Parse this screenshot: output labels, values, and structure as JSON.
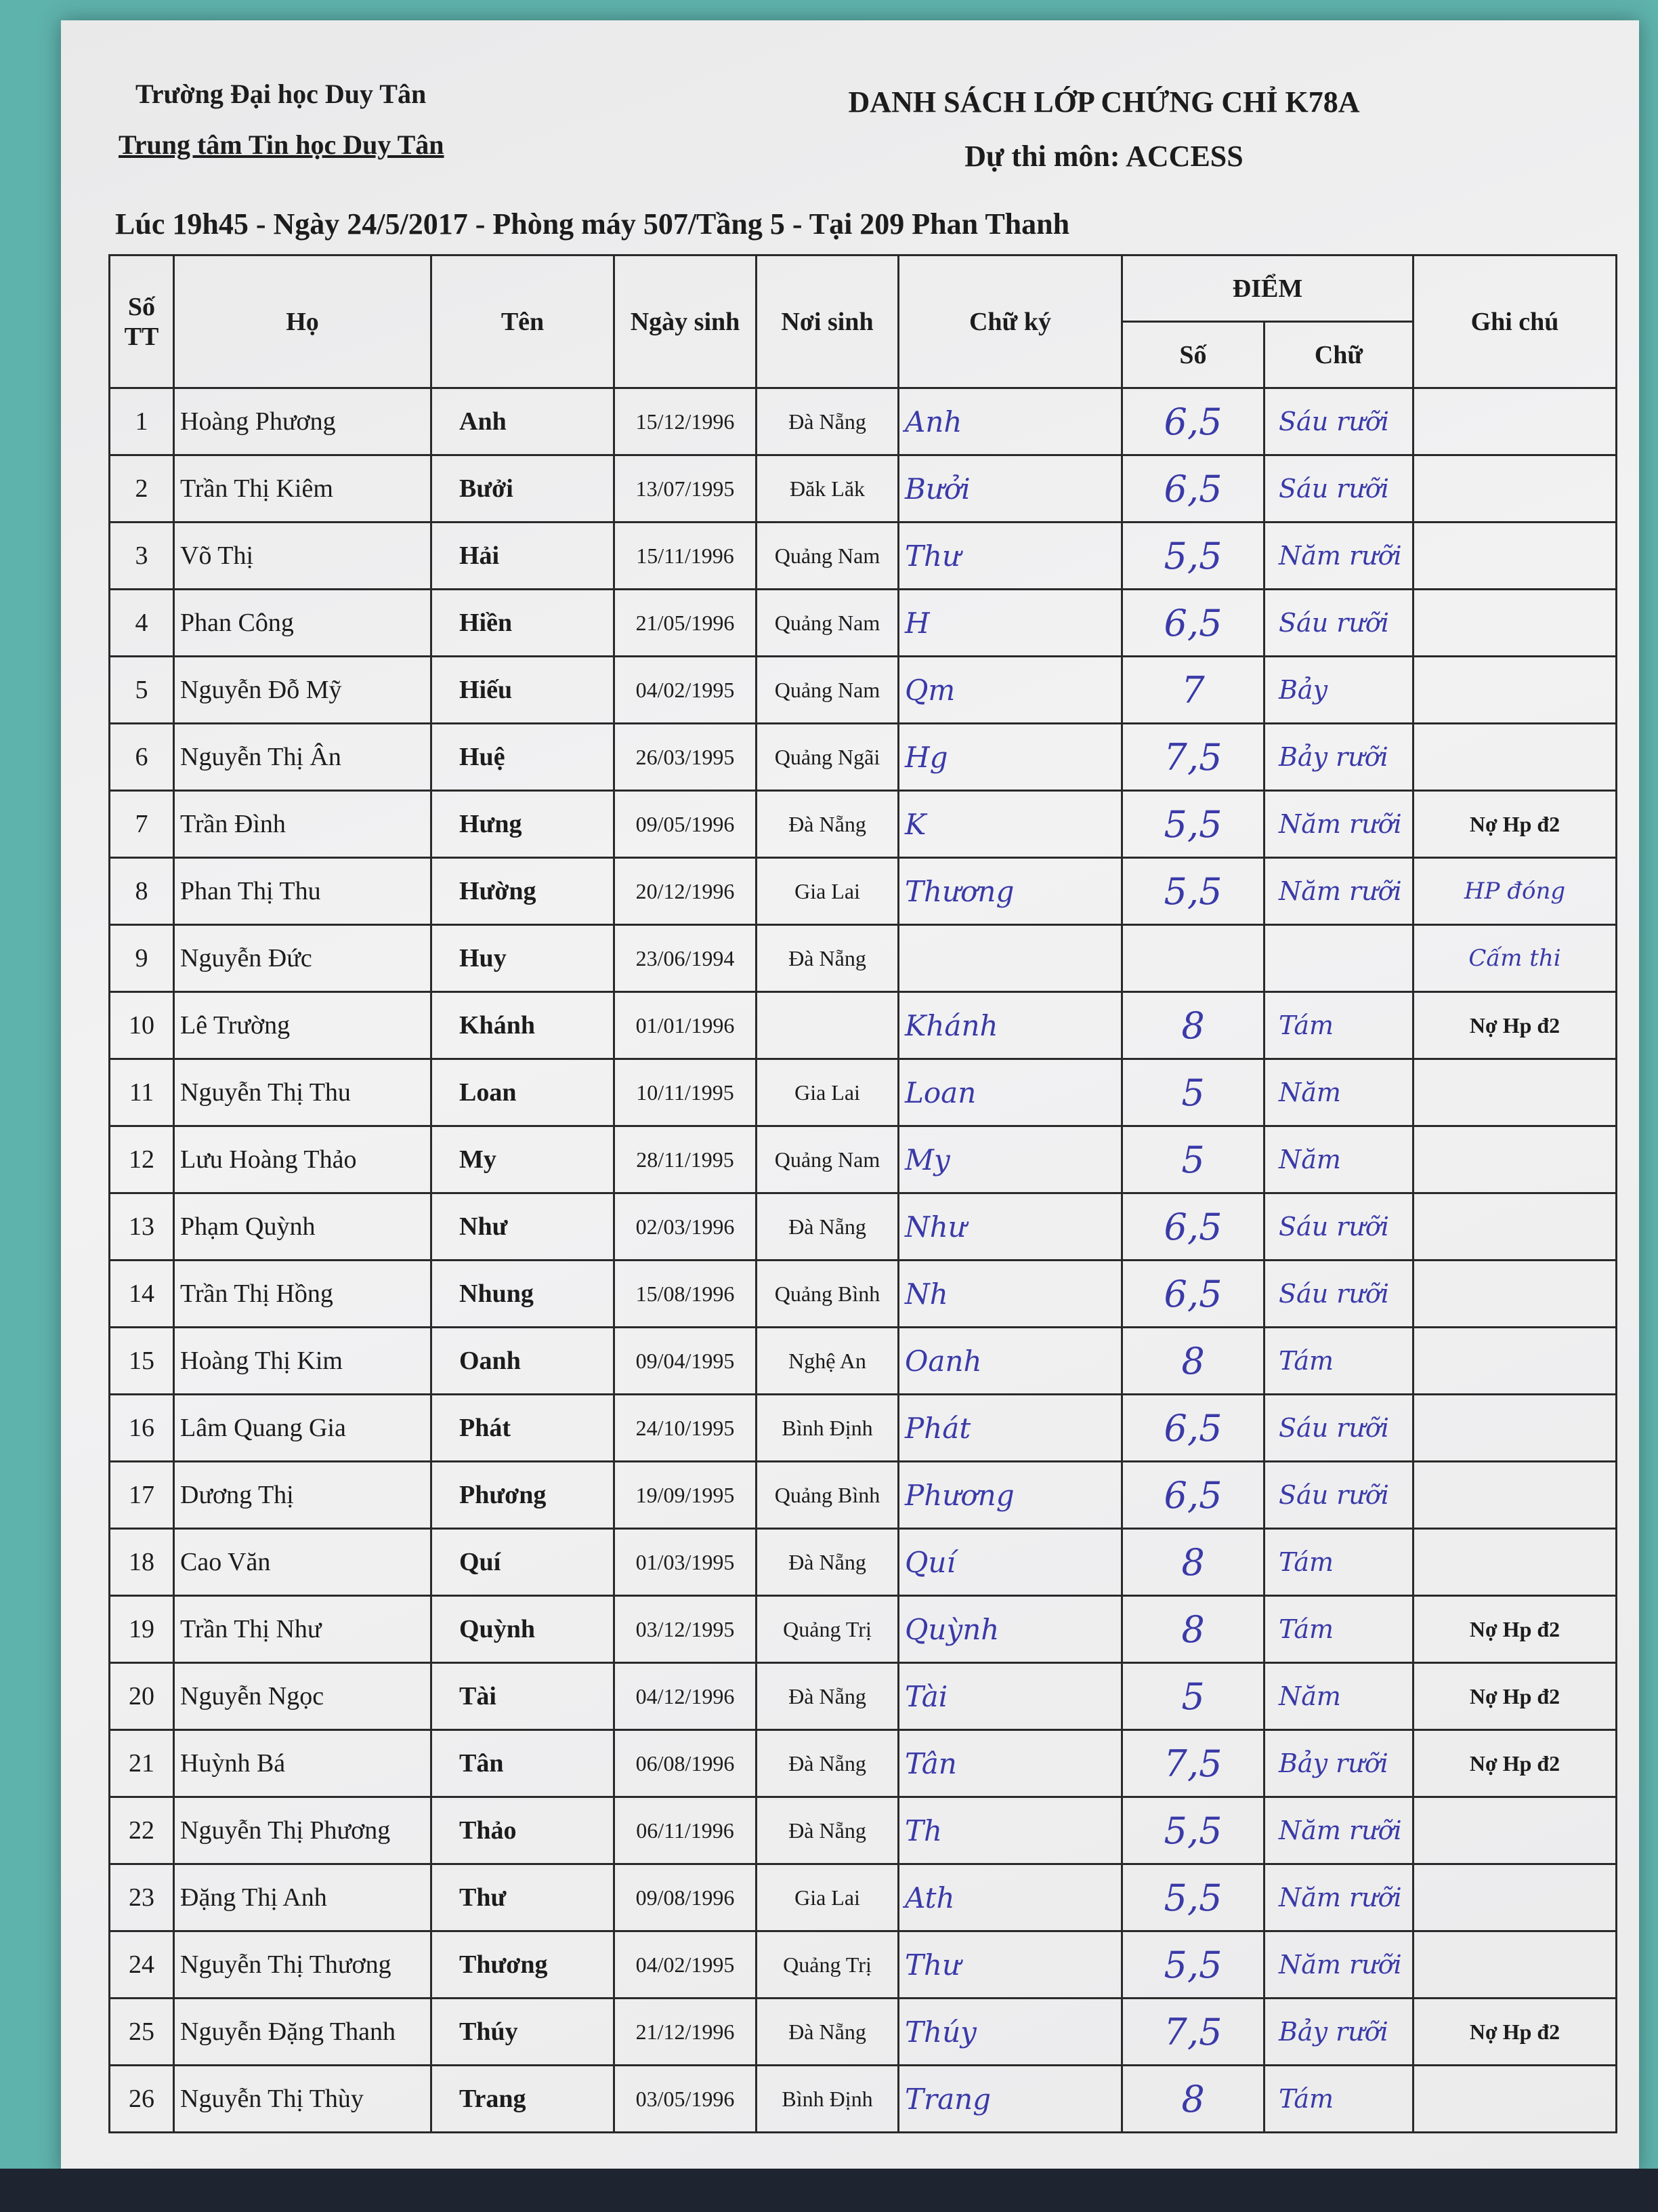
{
  "header": {
    "org_line1": "Trường Đại học Duy Tân",
    "org_line2": "Trung tâm Tin học Duy Tân",
    "title": "DANH SÁCH LỚP CHỨNG CHỈ K78A",
    "subtitle": "Dự thi môn: ACCESS",
    "session": "Lúc 19h45 - Ngày 24/5/2017 - Phòng máy 507/Tầng 5 - Tại 209 Phan Thanh"
  },
  "columns": {
    "stt": "Số TT",
    "ho": "Họ",
    "ten": "Tên",
    "dob": "Ngày sinh",
    "pob": "Nơi sinh",
    "sig": "Chữ ký",
    "diem": "ĐIỂM",
    "so": "Số",
    "chu": "Chữ",
    "note": "Ghi chú"
  },
  "rows": [
    {
      "stt": "1",
      "ho": "Hoàng Phương",
      "ten": "Anh",
      "dob": "15/12/1996",
      "pob": "Đà Nẵng",
      "sig": "Anh",
      "so": "6,5",
      "chu": "Sáu rưỡi",
      "note": "",
      "note_hand": ""
    },
    {
      "stt": "2",
      "ho": "Trần Thị Kiêm",
      "ten": "Bưởi",
      "dob": "13/07/1995",
      "pob": "Đăk Lăk",
      "sig": "Bưởi",
      "so": "6,5",
      "chu": "Sáu rưỡi",
      "note": "",
      "note_hand": ""
    },
    {
      "stt": "3",
      "ho": "Võ Thị",
      "ten": "Hải",
      "dob": "15/11/1996",
      "pob": "Quảng Nam",
      "sig": "Thư",
      "so": "5,5",
      "chu": "Năm rưỡi",
      "note": "",
      "note_hand": ""
    },
    {
      "stt": "4",
      "ho": "Phan Công",
      "ten": "Hiền",
      "dob": "21/05/1996",
      "pob": "Quảng Nam",
      "sig": "H",
      "so": "6,5",
      "chu": "Sáu rưỡi",
      "note": "",
      "note_hand": ""
    },
    {
      "stt": "5",
      "ho": "Nguyễn Đỗ Mỹ",
      "ten": "Hiếu",
      "dob": "04/02/1995",
      "pob": "Quảng Nam",
      "sig": "Qm",
      "so": "7",
      "chu": "Bảy",
      "note": "",
      "note_hand": ""
    },
    {
      "stt": "6",
      "ho": "Nguyễn Thị Ân",
      "ten": "Huệ",
      "dob": "26/03/1995",
      "pob": "Quảng Ngãi",
      "sig": "Hg",
      "so": "7,5",
      "chu": "Bảy rưỡi",
      "note": "",
      "note_hand": ""
    },
    {
      "stt": "7",
      "ho": "Trần Đình",
      "ten": "Hưng",
      "dob": "09/05/1996",
      "pob": "Đà Nẵng",
      "sig": "K",
      "so": "5,5",
      "chu": "Năm rưỡi",
      "note": "Nợ Hp đ2",
      "note_hand": ""
    },
    {
      "stt": "8",
      "ho": "Phan Thị Thu",
      "ten": "Hường",
      "dob": "20/12/1996",
      "pob": "Gia Lai",
      "sig": "Thương",
      "so": "5,5",
      "chu": "Năm rưỡi",
      "note": "",
      "note_hand": "HP đóng"
    },
    {
      "stt": "9",
      "ho": "Nguyễn Đức",
      "ten": "Huy",
      "dob": "23/06/1994",
      "pob": "Đà Nẵng",
      "sig": "",
      "so": "",
      "chu": "",
      "note": "",
      "note_hand": "Cấm thi"
    },
    {
      "stt": "10",
      "ho": "Lê Trường",
      "ten": "Khánh",
      "dob": "01/01/1996",
      "pob": "",
      "sig": "Khánh",
      "so": "8",
      "chu": "Tám",
      "note": "Nợ Hp đ2",
      "note_hand": ""
    },
    {
      "stt": "11",
      "ho": "Nguyễn Thị Thu",
      "ten": "Loan",
      "dob": "10/11/1995",
      "pob": "Gia Lai",
      "sig": "Loan",
      "so": "5",
      "chu": "Năm",
      "note": "",
      "note_hand": ""
    },
    {
      "stt": "12",
      "ho": "Lưu Hoàng Thảo",
      "ten": "My",
      "dob": "28/11/1995",
      "pob": "Quảng Nam",
      "sig": "My",
      "so": "5",
      "chu": "Năm",
      "note": "",
      "note_hand": ""
    },
    {
      "stt": "13",
      "ho": "Phạm Quỳnh",
      "ten": "Như",
      "dob": "02/03/1996",
      "pob": "Đà Nẵng",
      "sig": "Như",
      "so": "6,5",
      "chu": "Sáu rưỡi",
      "note": "",
      "note_hand": ""
    },
    {
      "stt": "14",
      "ho": "Trần Thị Hồng",
      "ten": "Nhung",
      "dob": "15/08/1996",
      "pob": "Quảng Bình",
      "sig": "Nh",
      "so": "6,5",
      "chu": "Sáu rưỡi",
      "note": "",
      "note_hand": ""
    },
    {
      "stt": "15",
      "ho": "Hoàng Thị Kim",
      "ten": "Oanh",
      "dob": "09/04/1995",
      "pob": "Nghệ An",
      "sig": "Oanh",
      "so": "8",
      "chu": "Tám",
      "note": "",
      "note_hand": ""
    },
    {
      "stt": "16",
      "ho": "Lâm Quang Gia",
      "ten": "Phát",
      "dob": "24/10/1995",
      "pob": "Bình Định",
      "sig": "Phát",
      "so": "6,5",
      "chu": "Sáu rưỡi",
      "note": "",
      "note_hand": ""
    },
    {
      "stt": "17",
      "ho": "Dương Thị",
      "ten": "Phương",
      "dob": "19/09/1995",
      "pob": "Quảng Bình",
      "sig": "Phương",
      "so": "6,5",
      "chu": "Sáu rưỡi",
      "note": "",
      "note_hand": ""
    },
    {
      "stt": "18",
      "ho": "Cao Văn",
      "ten": "Quí",
      "dob": "01/03/1995",
      "pob": "Đà Nẵng",
      "sig": "Quí",
      "so": "8",
      "chu": "Tám",
      "note": "",
      "note_hand": ""
    },
    {
      "stt": "19",
      "ho": "Trần Thị Như",
      "ten": "Quỳnh",
      "dob": "03/12/1995",
      "pob": "Quảng Trị",
      "sig": "Quỳnh",
      "so": "8",
      "chu": "Tám",
      "note": "Nợ Hp đ2",
      "note_hand": ""
    },
    {
      "stt": "20",
      "ho": "Nguyễn Ngọc",
      "ten": "Tài",
      "dob": "04/12/1996",
      "pob": "Đà Nẵng",
      "sig": "Tài",
      "so": "5",
      "chu": "Năm",
      "note": "Nợ Hp đ2",
      "note_hand": ""
    },
    {
      "stt": "21",
      "ho": "Huỳnh Bá",
      "ten": "Tân",
      "dob": "06/08/1996",
      "pob": "Đà Nẵng",
      "sig": "Tân",
      "so": "7,5",
      "chu": "Bảy rưỡi",
      "note": "Nợ Hp đ2",
      "note_hand": ""
    },
    {
      "stt": "22",
      "ho": "Nguyễn Thị Phương",
      "ten": "Thảo",
      "dob": "06/11/1996",
      "pob": "Đà Nẵng",
      "sig": "Th",
      "so": "5,5",
      "chu": "Năm rưỡi",
      "note": "",
      "note_hand": ""
    },
    {
      "stt": "23",
      "ho": "Đặng Thị Anh",
      "ten": "Thư",
      "dob": "09/08/1996",
      "pob": "Gia Lai",
      "sig": "Ath",
      "so": "5,5",
      "chu": "Năm rưỡi",
      "note": "",
      "note_hand": ""
    },
    {
      "stt": "24",
      "ho": "Nguyễn Thị Thương",
      "ten": "Thương",
      "dob": "04/02/1995",
      "pob": "Quảng Trị",
      "sig": "Thư",
      "so": "5,5",
      "chu": "Năm rưỡi",
      "note": "",
      "note_hand": ""
    },
    {
      "stt": "25",
      "ho": "Nguyễn Đặng Thanh",
      "ten": "Thúy",
      "dob": "21/12/1996",
      "pob": "Đà Nẵng",
      "sig": "Thúy",
      "so": "7,5",
      "chu": "Bảy rưỡi",
      "note": "Nợ Hp đ2",
      "note_hand": ""
    },
    {
      "stt": "26",
      "ho": "Nguyễn Thị Thùy",
      "ten": "Trang",
      "dob": "03/05/1996",
      "pob": "Bình Định",
      "sig": "Trang",
      "so": "8",
      "chu": "Tám",
      "note": "",
      "note_hand": ""
    }
  ],
  "colors": {
    "ink": "#3a3aa8",
    "print": "#1c1c1c",
    "background": "#5fb3ad"
  }
}
